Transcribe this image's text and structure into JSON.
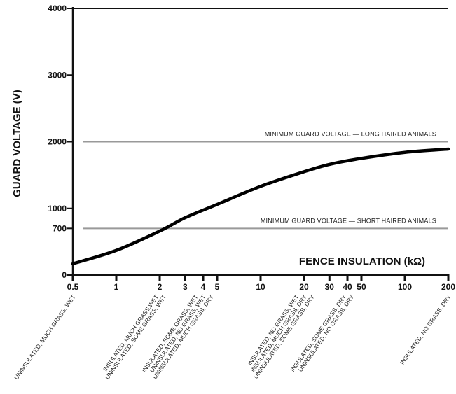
{
  "chart_data": {
    "type": "line",
    "xlabel": "FENCE INSULATION (kΩ)",
    "ylabel": "GUARD VOLTAGE (V)",
    "x_scale": "log",
    "xlim": [
      0.5,
      200
    ],
    "ylim": [
      0,
      4000
    ],
    "x_ticks": [
      0.5,
      1,
      2,
      3,
      4,
      5,
      10,
      20,
      30,
      40,
      50,
      100,
      200
    ],
    "x_tick_labels": [
      "0.5",
      "1",
      "2",
      "3",
      "4",
      "5",
      "10",
      "20",
      "30",
      "40",
      "50",
      "100",
      "200"
    ],
    "y_ticks": [
      0,
      700,
      1000,
      2000,
      3000,
      4000
    ],
    "y_tick_labels": [
      "0",
      "700",
      "1000",
      "2000",
      "3000",
      "4000"
    ],
    "series": [
      {
        "x": [
          0.5,
          1,
          2,
          3,
          5,
          10,
          20,
          30,
          50,
          100,
          200
        ],
        "y": [
          170,
          370,
          660,
          860,
          1060,
          1330,
          1550,
          1660,
          1750,
          1840,
          1890
        ]
      }
    ],
    "reference_lines": [
      {
        "y": 2000,
        "label": "MINIMUM GUARD VOLTAGE — LONG HAIRED ANIMALS"
      },
      {
        "y": 700,
        "label": "MINIMUM GUARD VOLTAGE — SHORT HAIRED ANIMALS"
      }
    ],
    "condition_labels": [
      {
        "x": 0.5,
        "lines": [
          "UNINSULATED, MUCH GRASS, WET"
        ]
      },
      {
        "x": 2,
        "lines": [
          "INSULATED, MUCH GRASS,WET",
          "UNINSULATED, SOME GRASS, WET"
        ]
      },
      {
        "x": 4,
        "lines": [
          "INSULATED, SOME GRASS, WET",
          "UNINSULATED, NO GRASS, WET",
          "UNINSULATED, MUCH GRASS, DRY"
        ]
      },
      {
        "x": 20,
        "lines": [
          "INSULATED, NO GRASS, WET",
          "INSULATED, MUCH GRASS, DRY",
          "UNINSULATED, SOME GRASS, DRY"
        ]
      },
      {
        "x": 40,
        "lines": [
          "INSULATED, SOME GRASS, DRY",
          "UNINSULATED, NO GRASS, DRY"
        ]
      },
      {
        "x": 200,
        "lines": [
          "INSULATED, NO GRASS, DRY"
        ]
      }
    ],
    "grid": false,
    "legend": "none"
  }
}
